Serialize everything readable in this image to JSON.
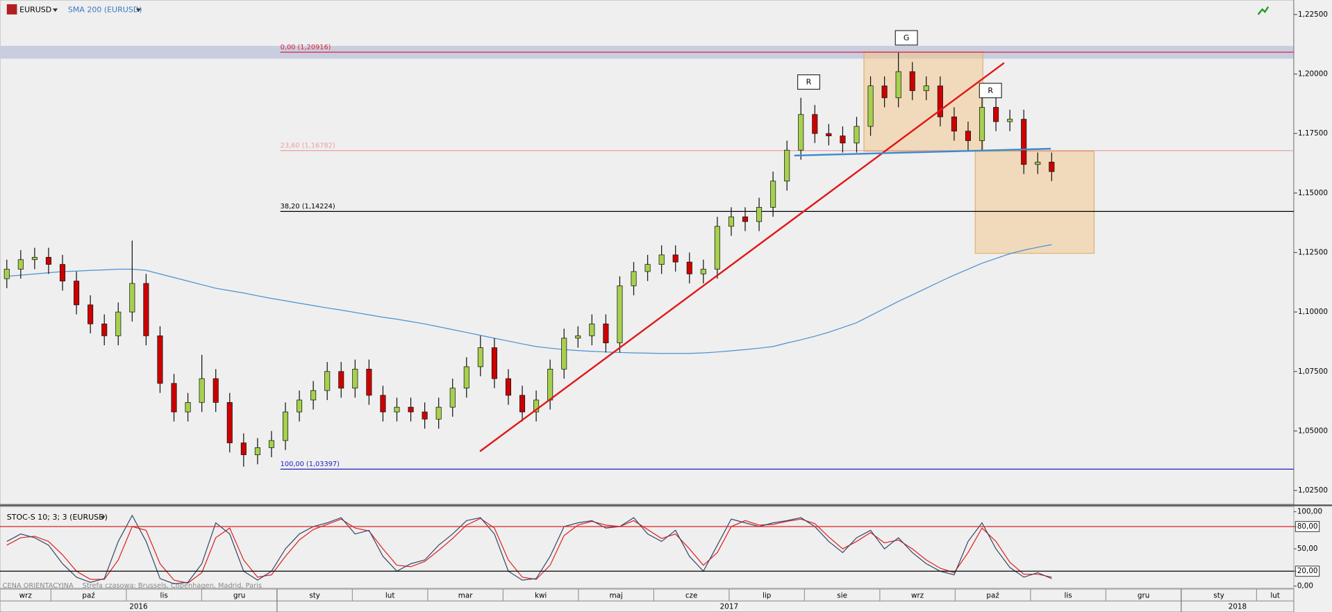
{
  "chart_data": {
    "type": "candlestick",
    "symbol": "EURUSD",
    "indicator": "SMA 200 (EURUSD)",
    "up_color": "#a6d04e",
    "down_color": "#cc0000",
    "open": [
      1.114,
      1.118,
      1.122,
      1.123,
      1.12,
      1.113,
      1.103,
      1.095,
      1.09,
      1.1,
      1.112,
      1.09,
      1.07,
      1.058,
      1.062,
      1.072,
      1.062,
      1.045,
      1.04,
      1.043,
      1.046,
      1.058,
      1.063,
      1.067,
      1.075,
      1.068,
      1.076,
      1.065,
      1.058,
      1.06,
      1.058,
      1.055,
      1.06,
      1.068,
      1.077,
      1.085,
      1.072,
      1.065,
      1.058,
      1.063,
      1.076,
      1.089,
      1.09,
      1.095,
      1.087,
      1.111,
      1.117,
      1.12,
      1.124,
      1.121,
      1.116,
      1.118,
      1.136,
      1.14,
      1.138,
      1.144,
      1.155,
      1.168,
      1.183,
      1.175,
      1.174,
      1.171,
      1.178,
      1.195,
      1.19,
      1.201,
      1.193,
      1.195,
      1.182,
      1.176,
      1.172,
      1.186,
      1.18,
      1.181,
      1.162,
      1.163
    ],
    "high": [
      1.122,
      1.126,
      1.127,
      1.127,
      1.124,
      1.117,
      1.107,
      1.099,
      1.104,
      1.13,
      1.116,
      1.094,
      1.074,
      1.066,
      1.082,
      1.076,
      1.066,
      1.049,
      1.047,
      1.05,
      1.062,
      1.067,
      1.071,
      1.079,
      1.079,
      1.08,
      1.08,
      1.069,
      1.064,
      1.064,
      1.062,
      1.064,
      1.072,
      1.081,
      1.09,
      1.089,
      1.076,
      1.069,
      1.067,
      1.08,
      1.093,
      1.094,
      1.099,
      1.099,
      1.115,
      1.121,
      1.124,
      1.128,
      1.128,
      1.125,
      1.122,
      1.14,
      1.144,
      1.144,
      1.148,
      1.159,
      1.172,
      1.19,
      1.187,
      1.179,
      1.178,
      1.182,
      1.199,
      1.199,
      1.209,
      1.205,
      1.199,
      1.199,
      1.186,
      1.18,
      1.19,
      1.19,
      1.185,
      1.185,
      1.167,
      1.167
    ],
    "low": [
      1.11,
      1.114,
      1.118,
      1.116,
      1.109,
      1.099,
      1.091,
      1.086,
      1.086,
      1.096,
      1.086,
      1.066,
      1.054,
      1.054,
      1.058,
      1.058,
      1.041,
      1.035,
      1.036,
      1.039,
      1.042,
      1.054,
      1.059,
      1.063,
      1.064,
      1.064,
      1.061,
      1.054,
      1.054,
      1.054,
      1.051,
      1.051,
      1.056,
      1.064,
      1.073,
      1.068,
      1.061,
      1.054,
      1.054,
      1.059,
      1.072,
      1.085,
      1.086,
      1.083,
      1.083,
      1.107,
      1.113,
      1.116,
      1.117,
      1.112,
      1.112,
      1.114,
      1.132,
      1.134,
      1.134,
      1.14,
      1.151,
      1.164,
      1.171,
      1.17,
      1.167,
      1.167,
      1.174,
      1.186,
      1.186,
      1.189,
      1.189,
      1.178,
      1.172,
      1.168,
      1.168,
      1.176,
      1.176,
      1.158,
      1.158,
      1.155
    ],
    "close": [
      1.118,
      1.122,
      1.123,
      1.12,
      1.113,
      1.103,
      1.095,
      1.09,
      1.1,
      1.112,
      1.09,
      1.07,
      1.058,
      1.062,
      1.072,
      1.062,
      1.045,
      1.04,
      1.043,
      1.046,
      1.058,
      1.063,
      1.067,
      1.075,
      1.068,
      1.076,
      1.065,
      1.058,
      1.06,
      1.058,
      1.055,
      1.06,
      1.068,
      1.077,
      1.085,
      1.072,
      1.065,
      1.058,
      1.063,
      1.076,
      1.089,
      1.09,
      1.095,
      1.087,
      1.111,
      1.117,
      1.12,
      1.124,
      1.121,
      1.116,
      1.118,
      1.136,
      1.14,
      1.138,
      1.144,
      1.155,
      1.168,
      1.183,
      1.175,
      1.174,
      1.171,
      1.178,
      1.195,
      1.19,
      1.201,
      1.193,
      1.195,
      1.182,
      1.176,
      1.172,
      1.186,
      1.18,
      1.181,
      1.162,
      1.163,
      1.159
    ],
    "sma": {
      "color": "#4a90d0",
      "values": [
        1.115,
        1.1155,
        1.116,
        1.1165,
        1.117,
        1.1172,
        1.1175,
        1.1177,
        1.118,
        1.118,
        1.1175,
        1.116,
        1.1145,
        1.113,
        1.1115,
        1.11,
        1.109,
        1.108,
        1.1068,
        1.1057,
        1.1047,
        1.1037,
        1.1027,
        1.1017,
        1.1008,
        1.0998,
        1.0988,
        1.0978,
        1.097,
        1.096,
        1.095,
        1.0938,
        1.0926,
        1.0914,
        1.0902,
        1.089,
        1.0878,
        1.0866,
        1.0855,
        1.0848,
        1.0842,
        1.0838,
        1.0835,
        1.0832,
        1.083,
        1.0828,
        1.0827,
        1.0826,
        1.0826,
        1.0826,
        1.0828,
        1.0832,
        1.0837,
        1.0842,
        1.0848,
        1.0855,
        1.087,
        1.0883,
        1.0898,
        1.0915,
        1.0935,
        1.0955,
        1.0985,
        1.1015,
        1.1045,
        1.1072,
        1.11,
        1.1128,
        1.1155,
        1.118,
        1.1205,
        1.1225,
        1.1245,
        1.126,
        1.1272,
        1.1283
      ]
    },
    "ylim": [
      1.0193,
      1.2311
    ],
    "yticks": [
      {
        "value": 1.225,
        "label": "1,22500"
      },
      {
        "value": 1.2,
        "label": "1,20000"
      },
      {
        "value": 1.175,
        "label": "1,17500"
      },
      {
        "value": 1.15,
        "label": "1,15000"
      },
      {
        "value": 1.125,
        "label": "1,12500"
      },
      {
        "value": 1.1,
        "label": "1,10000"
      },
      {
        "value": 1.075,
        "label": "1,07500"
      },
      {
        "value": 1.05,
        "label": "1,05000"
      },
      {
        "value": 1.025,
        "label": "1,02500"
      }
    ],
    "fib_levels": [
      {
        "label": "0,00 (1,20916)",
        "value": 1.20916,
        "color": "#e0203a"
      },
      {
        "label": "23,60 (1,16782)",
        "value": 1.16782,
        "color": "#e8a0a0"
      },
      {
        "label": "38,20 (1,14224)",
        "value": 1.14224,
        "color": "#000000"
      },
      {
        "label": "100,00 (1,03397)",
        "value": 1.03397,
        "color": "#2020c0"
      }
    ],
    "annotations": [
      "R",
      "G",
      "R"
    ],
    "oscillator": {
      "title": "STOC-S 10; 3; 3 (EURUSD)",
      "ylim": [
        -2.9,
        105.7
      ],
      "yticks": [
        {
          "value": 100,
          "label": "100,00"
        },
        {
          "value": 80,
          "label": "80,00"
        },
        {
          "value": 50,
          "label": "50,00"
        },
        {
          "value": 20,
          "label": "20,00"
        },
        {
          "value": 0,
          "label": "0,00"
        }
      ],
      "levels": [
        {
          "value": 80,
          "color": "#e02020"
        },
        {
          "value": 20,
          "color": "#000000"
        }
      ],
      "k": {
        "color": "#34486a",
        "values": [
          60,
          70,
          65,
          55,
          30,
          12,
          5,
          10,
          60,
          95,
          60,
          10,
          3,
          5,
          30,
          85,
          70,
          20,
          8,
          20,
          50,
          70,
          80,
          85,
          92,
          70,
          75,
          40,
          20,
          30,
          35,
          55,
          70,
          88,
          92,
          70,
          20,
          8,
          10,
          40,
          80,
          85,
          88,
          78,
          80,
          92,
          70,
          60,
          75,
          40,
          20,
          55,
          90,
          85,
          80,
          85,
          88,
          92,
          80,
          60,
          45,
          65,
          75,
          50,
          65,
          45,
          30,
          20,
          15,
          60,
          85,
          50,
          25,
          12,
          18,
          10
        ]
      },
      "d": {
        "color": "#e02020",
        "values": [
          55,
          65,
          67,
          60,
          42,
          20,
          9,
          9,
          35,
          80,
          75,
          30,
          8,
          4,
          18,
          65,
          78,
          35,
          12,
          15,
          40,
          62,
          76,
          83,
          90,
          78,
          74,
          50,
          28,
          26,
          33,
          48,
          64,
          82,
          91,
          78,
          35,
          12,
          9,
          28,
          68,
          82,
          87,
          82,
          80,
          88,
          76,
          64,
          70,
          50,
          28,
          45,
          80,
          88,
          82,
          83,
          87,
          90,
          84,
          66,
          50,
          60,
          72,
          58,
          62,
          50,
          35,
          24,
          18,
          45,
          78,
          60,
          32,
          16,
          16,
          12
        ]
      }
    },
    "footer": [
      "CENA ORIENTACYJNA",
      "Strefa czasowa: Brussels, Copenhagen, Madrid, Paris"
    ],
    "time_axis": [
      {
        "year": "2016",
        "months": [
          "wrz",
          "paź",
          "lis",
          "gru"
        ]
      },
      {
        "year": "2017",
        "months": [
          "sty",
          "lut",
          "mar",
          "kwi",
          "maj",
          "cze",
          "lip",
          "sie",
          "wrz",
          "paź",
          "lis",
          "gru"
        ]
      },
      {
        "year": "2018",
        "months": [
          "sty",
          "lut"
        ]
      }
    ]
  }
}
